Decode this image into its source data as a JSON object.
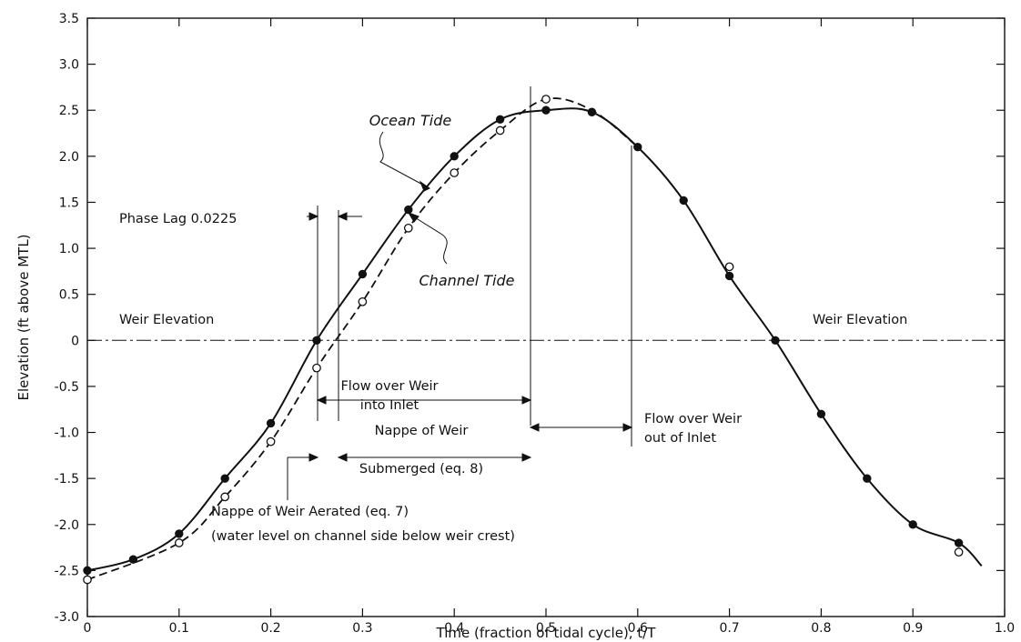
{
  "chart_data": {
    "type": "line",
    "title": "",
    "xlabel": "Time (fraction of tidal cycle), t/T",
    "ylabel": "Elevation (ft above MTL)",
    "xlim": [
      0,
      1.0
    ],
    "ylim": [
      -3.0,
      3.5
    ],
    "x_ticks": [
      "0",
      "0.1",
      "0.2",
      "0.3",
      "0.4",
      "0.5",
      "0.6",
      "0.7",
      "0.8",
      "0.9",
      "1.0"
    ],
    "y_ticks": [
      "3.5",
      "3.0",
      "2.5",
      "2.0",
      "1.5",
      "1.0",
      "0.5",
      "0",
      "-0.5",
      "-1.0",
      "-1.5",
      "-2.0",
      "-2.5",
      "-3.0"
    ],
    "grid": false,
    "series": [
      {
        "name": "Ocean Tide",
        "style": "solid",
        "marker": "filled-circle",
        "points": [
          {
            "x": 0.0,
            "y": -2.5
          },
          {
            "x": 0.05,
            "y": -2.38
          },
          {
            "x": 0.1,
            "y": -2.1
          },
          {
            "x": 0.15,
            "y": -1.5
          },
          {
            "x": 0.2,
            "y": -0.9
          },
          {
            "x": 0.25,
            "y": 0.0
          },
          {
            "x": 0.3,
            "y": 0.72
          },
          {
            "x": 0.35,
            "y": 1.42
          },
          {
            "x": 0.4,
            "y": 2.0
          },
          {
            "x": 0.45,
            "y": 2.4
          },
          {
            "x": 0.5,
            "y": 2.5
          },
          {
            "x": 0.55,
            "y": 2.48
          },
          {
            "x": 0.6,
            "y": 2.1
          },
          {
            "x": 0.65,
            "y": 1.52
          },
          {
            "x": 0.7,
            "y": 0.7
          },
          {
            "x": 0.75,
            "y": 0.0
          },
          {
            "x": 0.8,
            "y": -0.8
          },
          {
            "x": 0.85,
            "y": -1.5
          },
          {
            "x": 0.9,
            "y": -2.0
          },
          {
            "x": 0.95,
            "y": -2.2
          }
        ]
      },
      {
        "name": "Channel Tide",
        "style": "dashed",
        "marker": "open-circle",
        "points": [
          {
            "x": 0.0,
            "y": -2.6
          },
          {
            "x": 0.1,
            "y": -2.2
          },
          {
            "x": 0.15,
            "y": -1.7
          },
          {
            "x": 0.2,
            "y": -1.1
          },
          {
            "x": 0.25,
            "y": -0.3
          },
          {
            "x": 0.3,
            "y": 0.42
          },
          {
            "x": 0.35,
            "y": 1.22
          },
          {
            "x": 0.4,
            "y": 1.82
          },
          {
            "x": 0.45,
            "y": 2.28
          },
          {
            "x": 0.5,
            "y": 2.62
          },
          {
            "x": 0.7,
            "y": 0.8
          },
          {
            "x": 0.95,
            "y": -2.3
          }
        ]
      }
    ],
    "reference_lines": [
      {
        "axis": "y",
        "value": 0,
        "style": "dash-dot",
        "label": "Weir Elevation"
      }
    ],
    "annotations": {
      "ocean_tide": "Ocean Tide",
      "channel_tide": "Channel Tide",
      "weir_left": "Weir Elevation",
      "weir_right": "Weir Elevation",
      "phase_lag": "Phase Lag 0.0225",
      "flow_into_1": "Flow over Weir",
      "flow_into_2": "into Inlet",
      "flow_out_1": "Flow over Weir",
      "flow_out_2": "out of Inlet",
      "submerged_1": "Nappe of Weir",
      "submerged_2": "Submerged (eq. 8)",
      "aerated_1": "Nappe of Weir Aerated (eq. 7)",
      "aerated_2": "(water level on channel side below weir crest)"
    }
  }
}
